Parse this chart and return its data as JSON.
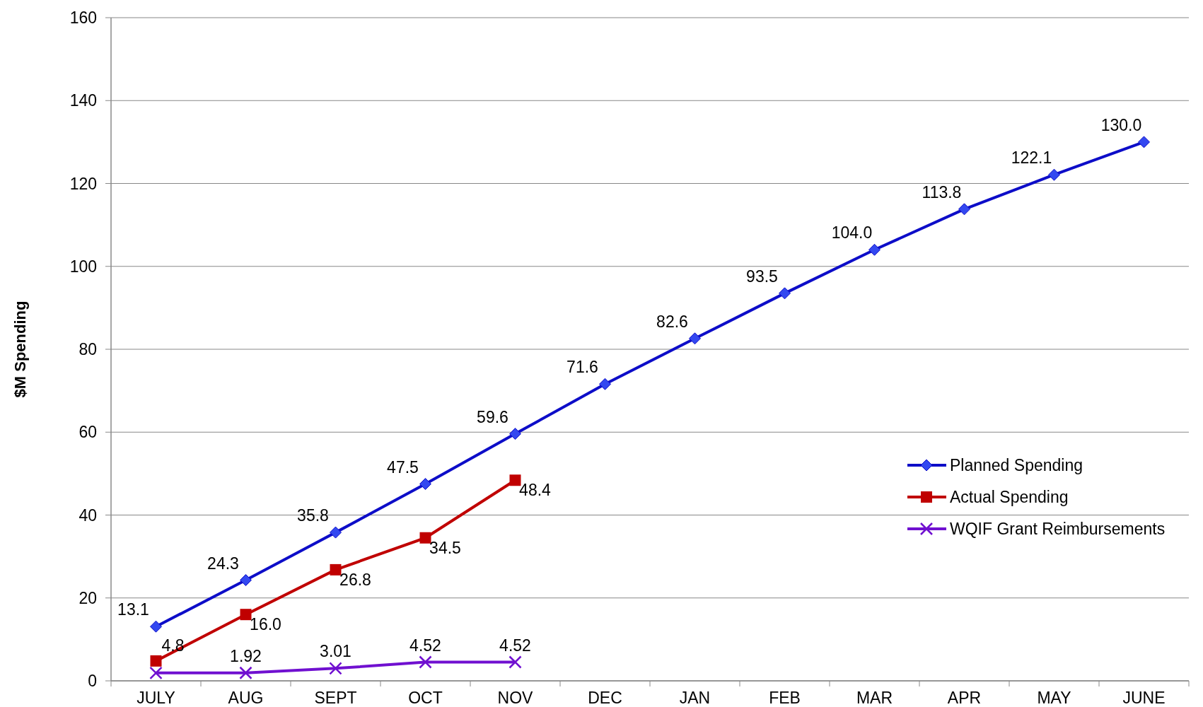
{
  "chart_data": {
    "type": "line",
    "ylabel": "$M Spending",
    "categories": [
      "JULY",
      "AUG",
      "SEPT",
      "OCT",
      "NOV",
      "DEC",
      "JAN",
      "FEB",
      "MAR",
      "APR",
      "MAY",
      "JUNE"
    ],
    "series": [
      {
        "name": "Planned Spending",
        "color": "#0d0dc8",
        "marker": "diamond",
        "values": [
          13.1,
          24.3,
          35.8,
          47.5,
          59.6,
          71.6,
          82.6,
          93.5,
          104.0,
          113.8,
          122.1,
          130.0
        ],
        "value_labels": [
          "13.1",
          "24.3",
          "35.8",
          "47.5",
          "59.6",
          "71.6",
          "82.6",
          "93.5",
          "104.0",
          "113.8",
          "122.1",
          "130.0"
        ]
      },
      {
        "name": "Actual Spending",
        "color": "#c00000",
        "marker": "square",
        "values": [
          4.8,
          16.0,
          26.8,
          34.5,
          48.4,
          null,
          null,
          null,
          null,
          null,
          null,
          null
        ],
        "value_labels": [
          "4.8",
          "16.0",
          "26.8",
          "34.5",
          "48.4",
          null,
          null,
          null,
          null,
          null,
          null,
          null
        ]
      },
      {
        "name": "WQIF Grant Reimbursements",
        "color": "#7010d0",
        "marker": "cross",
        "values": [
          1.9,
          1.92,
          3.01,
          4.52,
          4.52,
          null,
          null,
          null,
          null,
          null,
          null,
          null
        ],
        "value_labels": [
          null,
          "1.92",
          "3.01",
          "4.52",
          "4.52",
          null,
          null,
          null,
          null,
          null,
          null,
          null
        ]
      }
    ],
    "ylim": [
      0,
      160
    ],
    "yticks": [
      0,
      20,
      40,
      60,
      80,
      100,
      120,
      140,
      160
    ],
    "grid": "y",
    "legend": "right",
    "line_style": "solid"
  }
}
